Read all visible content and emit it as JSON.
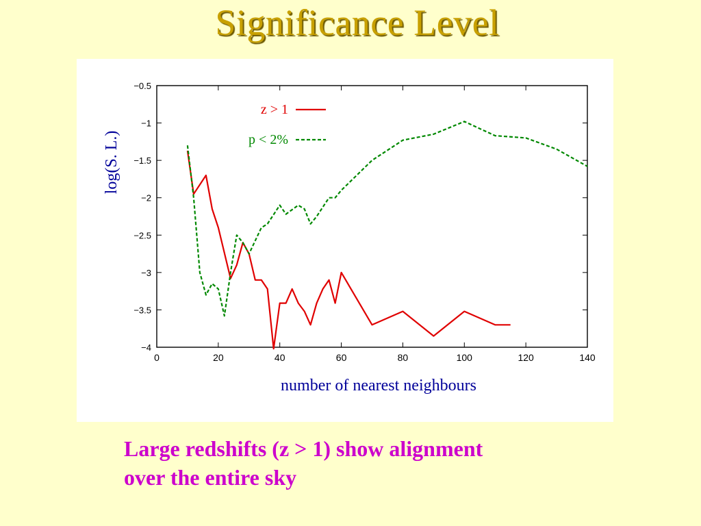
{
  "slide": {
    "title": "Significance Level",
    "caption_lines": [
      "Large redshifts (z > 1) show alignment",
      "over the entire sky"
    ]
  },
  "chart_data": {
    "type": "line",
    "xlabel": "number of nearest neighbours",
    "ylabel": "log(S. L.)",
    "xlim": [
      0,
      140
    ],
    "ylim": [
      -4,
      -0.5
    ],
    "x_ticks": [
      0,
      20,
      40,
      60,
      80,
      100,
      120,
      140
    ],
    "x_tick_labels": [
      "0",
      "20",
      "40",
      "60",
      "80",
      "100",
      "120",
      "140"
    ],
    "y_ticks": [
      -0.5,
      -1,
      -1.5,
      -2,
      -2.5,
      -3,
      -3.5,
      -4
    ],
    "y_tick_labels": [
      "−0.5",
      "−1",
      "−1.5",
      "−2",
      "−2.5",
      "−3",
      "−3.5",
      "−4"
    ],
    "grid": false,
    "legend_position": "top-left",
    "series": [
      {
        "name": "z > 1",
        "color": "#e00000",
        "style": "solid",
        "points": [
          [
            10,
            -1.37
          ],
          [
            12,
            -1.95
          ],
          [
            16,
            -1.7
          ],
          [
            18,
            -2.15
          ],
          [
            20,
            -2.4
          ],
          [
            24,
            -3.08
          ],
          [
            26,
            -2.9
          ],
          [
            28,
            -2.6
          ],
          [
            30,
            -2.75
          ],
          [
            32,
            -3.1
          ],
          [
            34,
            -3.1
          ],
          [
            36,
            -3.22
          ],
          [
            38,
            -4.02
          ],
          [
            40,
            -3.41
          ],
          [
            42,
            -3.41
          ],
          [
            44,
            -3.22
          ],
          [
            46,
            -3.41
          ],
          [
            48,
            -3.52
          ],
          [
            50,
            -3.7
          ],
          [
            52,
            -3.41
          ],
          [
            54,
            -3.22
          ],
          [
            56,
            -3.1
          ],
          [
            58,
            -3.41
          ],
          [
            60,
            -3.0
          ],
          [
            70,
            -3.7
          ],
          [
            80,
            -3.52
          ],
          [
            90,
            -3.85
          ],
          [
            100,
            -3.52
          ],
          [
            110,
            -3.7
          ],
          [
            115,
            -3.7
          ]
        ]
      },
      {
        "name": "p < 2%",
        "color": "#008800",
        "style": "dashed",
        "points": [
          [
            10,
            -1.3
          ],
          [
            12,
            -2.0
          ],
          [
            14,
            -3.0
          ],
          [
            16,
            -3.3
          ],
          [
            18,
            -3.15
          ],
          [
            20,
            -3.22
          ],
          [
            22,
            -3.58
          ],
          [
            24,
            -3.0
          ],
          [
            26,
            -2.5
          ],
          [
            28,
            -2.6
          ],
          [
            30,
            -2.75
          ],
          [
            34,
            -2.4
          ],
          [
            36,
            -2.35
          ],
          [
            40,
            -2.1
          ],
          [
            42,
            -2.22
          ],
          [
            46,
            -2.1
          ],
          [
            48,
            -2.15
          ],
          [
            50,
            -2.35
          ],
          [
            52,
            -2.25
          ],
          [
            56,
            -2.0
          ],
          [
            58,
            -2.0
          ],
          [
            60,
            -1.9
          ],
          [
            70,
            -1.5
          ],
          [
            80,
            -1.23
          ],
          [
            90,
            -1.15
          ],
          [
            100,
            -0.98
          ],
          [
            110,
            -1.17
          ],
          [
            120,
            -1.2
          ],
          [
            130,
            -1.35
          ],
          [
            140,
            -1.58
          ]
        ]
      }
    ]
  }
}
